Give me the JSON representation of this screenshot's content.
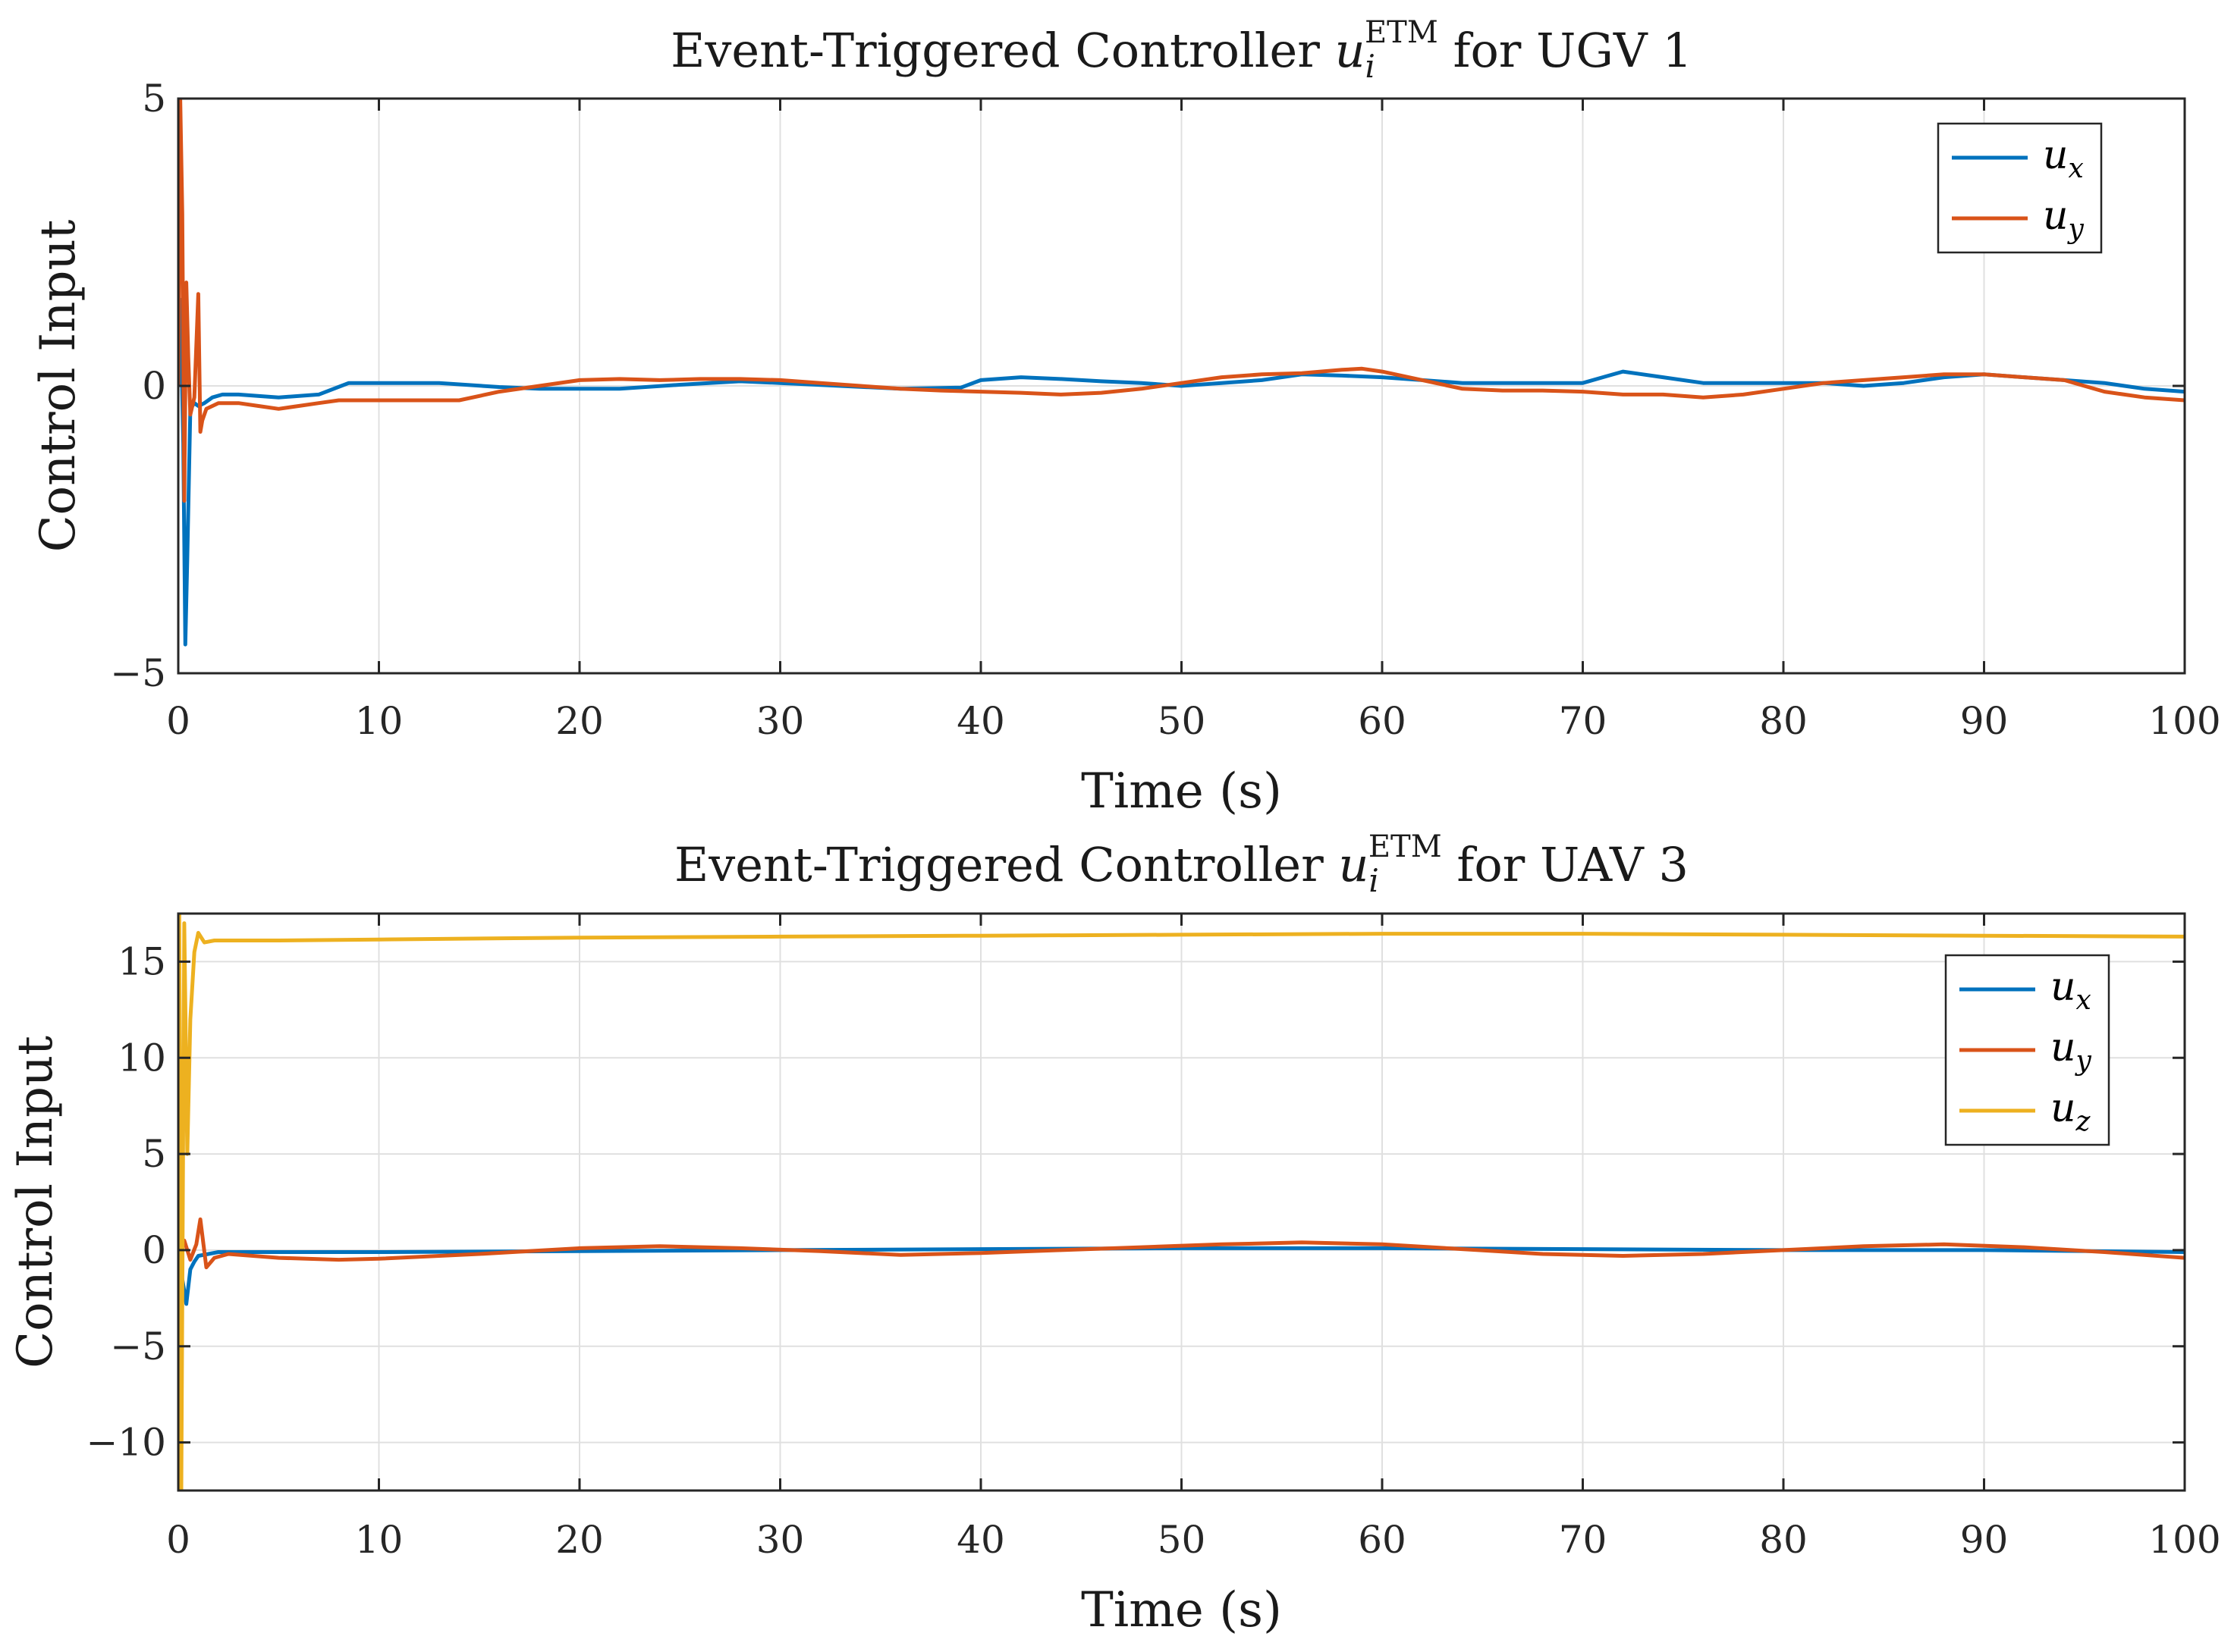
{
  "chart_data": [
    {
      "type": "line",
      "title_prefix": "Event-Triggered Controller ",
      "title_symbol": "u",
      "title_sub": "i",
      "title_sup": "ETM",
      "title_suffix": " for UGV 1",
      "xlabel": "Time (s)",
      "ylabel": "Control Input",
      "xlim": [
        0,
        100
      ],
      "ylim": [
        -5,
        5
      ],
      "xticks": [
        0,
        10,
        20,
        30,
        40,
        50,
        60,
        70,
        80,
        90,
        100
      ],
      "xtick_labels": [
        "0",
        "10",
        "20",
        "30",
        "40",
        "50",
        "60",
        "70",
        "80",
        "90",
        "100"
      ],
      "yticks": [
        -5,
        0,
        5
      ],
      "ytick_labels": [
        "−5",
        "0",
        "5"
      ],
      "grid": true,
      "legend_position": "top-right",
      "series": [
        {
          "name": "u_x",
          "symbol": "u",
          "sub": "x",
          "color": "#0072BD",
          "x": [
            0,
            0.1,
            0.25,
            0.35,
            0.45,
            0.6,
            0.8,
            1.0,
            1.3,
            1.7,
            2.2,
            3,
            5,
            7,
            8.5,
            10,
            12,
            13,
            16,
            18,
            20,
            22,
            25,
            28,
            30,
            33,
            36,
            39,
            40,
            42,
            44,
            46,
            48,
            50,
            52,
            54,
            56,
            58,
            60,
            62,
            64,
            66,
            68,
            70,
            71,
            72,
            74,
            76,
            78,
            80,
            82,
            84,
            86,
            88,
            90,
            92,
            94,
            96,
            98,
            100
          ],
          "y": [
            0,
            1.5,
            -1.0,
            -4.5,
            -3.0,
            -0.4,
            -0.3,
            -0.35,
            -0.3,
            -0.2,
            -0.15,
            -0.15,
            -0.2,
            -0.15,
            0.05,
            0.05,
            0.05,
            0.05,
            -0.02,
            -0.05,
            -0.05,
            -0.05,
            0.02,
            0.08,
            0.05,
            0.0,
            -0.05,
            -0.03,
            0.1,
            0.15,
            0.12,
            0.08,
            0.05,
            0.0,
            0.05,
            0.1,
            0.2,
            0.18,
            0.15,
            0.1,
            0.05,
            0.05,
            0.05,
            0.05,
            0.15,
            0.25,
            0.15,
            0.05,
            0.05,
            0.05,
            0.05,
            0.0,
            0.05,
            0.15,
            0.2,
            0.15,
            0.1,
            0.05,
            -0.05,
            -0.1
          ]
        },
        {
          "name": "u_y",
          "symbol": "u",
          "sub": "y",
          "color": "#D95319",
          "x": [
            0,
            0.1,
            0.2,
            0.3,
            0.4,
            0.5,
            0.6,
            0.8,
            1.0,
            1.1,
            1.2,
            1.4,
            1.7,
            2.0,
            2.5,
            3,
            4,
            5,
            6,
            7,
            8,
            10,
            12,
            14,
            16,
            18,
            20,
            22,
            24,
            26,
            28,
            30,
            32,
            34,
            36,
            38,
            40,
            42,
            44,
            46,
            48,
            50,
            52,
            54,
            56,
            58,
            59,
            60,
            62,
            64,
            66,
            68,
            70,
            72,
            74,
            76,
            78,
            80,
            82,
            84,
            86,
            88,
            90,
            92,
            94,
            96,
            98,
            100
          ],
          "y": [
            0,
            5,
            3,
            -2,
            1.8,
            0.5,
            -0.5,
            -0.2,
            1.6,
            -0.8,
            -0.6,
            -0.4,
            -0.35,
            -0.3,
            -0.3,
            -0.3,
            -0.35,
            -0.4,
            -0.35,
            -0.3,
            -0.25,
            -0.25,
            -0.25,
            -0.25,
            -0.1,
            0.0,
            0.1,
            0.12,
            0.1,
            0.12,
            0.12,
            0.1,
            0.05,
            0.0,
            -0.05,
            -0.08,
            -0.1,
            -0.12,
            -0.15,
            -0.12,
            -0.05,
            0.05,
            0.15,
            0.2,
            0.22,
            0.28,
            0.3,
            0.25,
            0.1,
            -0.05,
            -0.08,
            -0.08,
            -0.1,
            -0.15,
            -0.15,
            -0.2,
            -0.15,
            -0.05,
            0.05,
            0.1,
            0.15,
            0.2,
            0.2,
            0.15,
            0.1,
            -0.1,
            -0.2,
            -0.25
          ]
        }
      ]
    },
    {
      "type": "line",
      "title_prefix": "Event-Triggered Controller ",
      "title_symbol": "u",
      "title_sub": "i",
      "title_sup": "ETM",
      "title_suffix": " for UAV 3",
      "xlabel": "Time (s)",
      "ylabel": "Control Input",
      "xlim": [
        0,
        100
      ],
      "ylim": [
        -12.5,
        17.5
      ],
      "xticks": [
        0,
        10,
        20,
        30,
        40,
        50,
        60,
        70,
        80,
        90,
        100
      ],
      "xtick_labels": [
        "0",
        "10",
        "20",
        "30",
        "40",
        "50",
        "60",
        "70",
        "80",
        "90",
        "100"
      ],
      "yticks": [
        -10,
        -5,
        0,
        5,
        10,
        15
      ],
      "ytick_labels": [
        "−10",
        "−5",
        "0",
        "5",
        "10",
        "15"
      ],
      "grid": true,
      "legend_position": "top-right",
      "series": [
        {
          "name": "u_x",
          "symbol": "u",
          "sub": "x",
          "color": "#0072BD",
          "x": [
            0,
            0.2,
            0.4,
            0.6,
            0.8,
            1.0,
            1.5,
            2,
            5,
            10,
            20,
            30,
            40,
            50,
            60,
            70,
            80,
            90,
            100
          ],
          "y": [
            0,
            -1.5,
            -2.8,
            -1.0,
            -0.6,
            -0.3,
            -0.2,
            -0.1,
            -0.1,
            -0.1,
            -0.05,
            0.0,
            0.05,
            0.1,
            0.1,
            0.05,
            0.0,
            0.0,
            -0.1
          ]
        },
        {
          "name": "u_y",
          "symbol": "u",
          "sub": "y",
          "color": "#D95319",
          "x": [
            0,
            0.3,
            0.6,
            0.9,
            1.1,
            1.4,
            1.8,
            2.5,
            5,
            8,
            10,
            15,
            20,
            24,
            28,
            32,
            36,
            40,
            44,
            48,
            52,
            56,
            60,
            64,
            68,
            72,
            76,
            80,
            84,
            88,
            92,
            96,
            100
          ],
          "y": [
            0,
            0.5,
            -0.5,
            0.3,
            1.6,
            -0.9,
            -0.4,
            -0.2,
            -0.4,
            -0.5,
            -0.45,
            -0.2,
            0.1,
            0.2,
            0.1,
            -0.05,
            -0.25,
            -0.15,
            0.0,
            0.15,
            0.3,
            0.4,
            0.3,
            0.05,
            -0.2,
            -0.3,
            -0.2,
            0.0,
            0.2,
            0.3,
            0.15,
            -0.1,
            -0.4
          ]
        },
        {
          "name": "u_z",
          "symbol": "u",
          "sub": "z",
          "color": "#EDB120",
          "x": [
            0,
            0.05,
            0.15,
            0.3,
            0.45,
            0.6,
            0.8,
            1.0,
            1.3,
            1.8,
            3,
            5,
            10,
            20,
            30,
            40,
            50,
            60,
            70,
            80,
            90,
            100
          ],
          "y": [
            0,
            17.5,
            -12.5,
            17.0,
            5.0,
            12.0,
            15.5,
            16.5,
            16.0,
            16.1,
            16.1,
            16.1,
            16.15,
            16.25,
            16.3,
            16.35,
            16.4,
            16.45,
            16.45,
            16.4,
            16.35,
            16.3
          ]
        }
      ]
    }
  ]
}
